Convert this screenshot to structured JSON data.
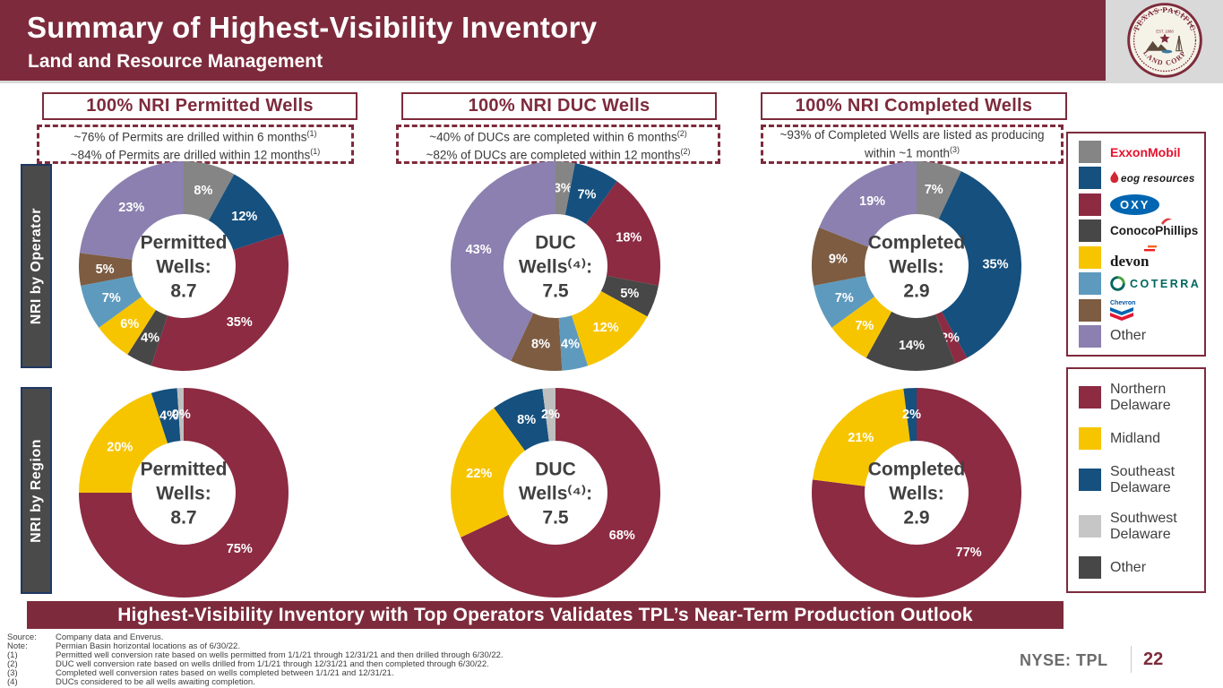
{
  "header": {
    "title": "Summary of Highest-Visibility Inventory",
    "subtitle": "Land and Resource Management",
    "logo": {
      "top": "TEXAS PACIFIC",
      "bottom": "LAND CORP",
      "est": "EST. 1888"
    }
  },
  "columns": [
    {
      "header": "100%  NRI Permitted Wells",
      "notes": [
        {
          "text": "~76% of Permits are drilled within 6 months",
          "sup": "(1)"
        },
        {
          "text": "~84% of Permits are drilled within 12 months",
          "sup": "(1)"
        }
      ]
    },
    {
      "header": "100% NRI DUC Wells",
      "notes": [
        {
          "text": "~40% of DUCs are completed within 6 months",
          "sup": "(2)"
        },
        {
          "text": "~82% of DUCs are completed within 12 months",
          "sup": "(2)"
        }
      ]
    },
    {
      "header": "100%  NRI Completed Wells",
      "notes": [
        {
          "text": "~93% of Completed Wells are listed as producing within ~1 month",
          "sup": "(3)"
        }
      ]
    }
  ],
  "row_labels": [
    "NRI by Operator",
    "NRI by Region"
  ],
  "chart_data": [
    {
      "type": "donut",
      "group": "NRI by Operator",
      "well_type": "Permitted Wells",
      "center": [
        "Permitted",
        "Wells:",
        "8.7"
      ],
      "labels": [
        "ExxonMobil",
        "EOG Resources",
        "OXY",
        "ConocoPhillips",
        "Devon",
        "Coterra",
        "Chevron",
        "Other"
      ],
      "values": [
        8,
        12,
        35,
        4,
        6,
        7,
        5,
        23
      ],
      "colors": [
        "#858585",
        "#15507E",
        "#8C2B42",
        "#474747",
        "#F7C500",
        "#5E9ABD",
        "#7D5C41",
        "#8B80AF"
      ]
    },
    {
      "type": "donut",
      "group": "NRI by Operator",
      "well_type": "DUC Wells",
      "center": [
        "DUC",
        "Wells⁽⁴⁾:",
        "7.5"
      ],
      "labels": [
        "ExxonMobil",
        "EOG Resources",
        "OXY",
        "ConocoPhillips",
        "Devon",
        "Coterra",
        "Chevron",
        "Other"
      ],
      "values": [
        3,
        7,
        18,
        5,
        12,
        4,
        8,
        43
      ],
      "colors": [
        "#858585",
        "#15507E",
        "#8C2B42",
        "#474747",
        "#F7C500",
        "#5E9ABD",
        "#7D5C41",
        "#8B80AF"
      ]
    },
    {
      "type": "donut",
      "group": "NRI by Operator",
      "well_type": "Completed Wells",
      "center": [
        "Completed",
        "Wells:",
        "2.9"
      ],
      "labels": [
        "ExxonMobil",
        "EOG Resources",
        "OXY",
        "ConocoPhillips",
        "Devon",
        "Coterra",
        "Chevron",
        "Other"
      ],
      "values": [
        7,
        35,
        2,
        14,
        7,
        7,
        9,
        19
      ],
      "colors": [
        "#858585",
        "#15507E",
        "#8C2B42",
        "#474747",
        "#F7C500",
        "#5E9ABD",
        "#7D5C41",
        "#8B80AF"
      ]
    },
    {
      "type": "donut",
      "group": "NRI by Region",
      "well_type": "Permitted Wells",
      "center": [
        "Permitted",
        "Wells:",
        "8.7"
      ],
      "labels": [
        "Northern Delaware",
        "Midland",
        "Southeast Delaware",
        "Southwest Delaware"
      ],
      "values": [
        75,
        20,
        4,
        0
      ],
      "draw_values": [
        75,
        20,
        4,
        1
      ],
      "colors": [
        "#8C2B42",
        "#F7C500",
        "#15507E",
        "#BFBFBF"
      ]
    },
    {
      "type": "donut",
      "group": "NRI by Region",
      "well_type": "DUC Wells",
      "center": [
        "DUC",
        "Wells⁽⁴⁾:",
        "7.5"
      ],
      "labels": [
        "Northern Delaware",
        "Midland",
        "Southeast Delaware",
        "Southwest Delaware"
      ],
      "values": [
        68,
        22,
        8,
        2
      ],
      "colors": [
        "#8C2B42",
        "#F7C500",
        "#15507E",
        "#BFBFBF"
      ]
    },
    {
      "type": "donut",
      "group": "NRI by Region",
      "well_type": "Completed Wells",
      "center": [
        "Completed",
        "Wells:",
        "2.9"
      ],
      "labels": [
        "Northern Delaware",
        "Midland",
        "Southeast Delaware"
      ],
      "values": [
        77,
        21,
        2
      ],
      "colors": [
        "#8C2B42",
        "#F7C500",
        "#15507E"
      ]
    }
  ],
  "legends": {
    "operator": {
      "items": [
        {
          "name": "ExxonMobil",
          "color": "#858585"
        },
        {
          "name": "eog resources",
          "color": "#15507E"
        },
        {
          "name": "OXY",
          "color": "#8C2B42"
        },
        {
          "name": "ConocoPhillips",
          "color": "#474747"
        },
        {
          "name": "devon",
          "color": "#F7C500"
        },
        {
          "name": "COTERRA",
          "color": "#5E9ABD"
        },
        {
          "name": "Chevron",
          "color": "#7D5C41"
        },
        {
          "name": "Other",
          "color": "#8B80AF"
        }
      ]
    },
    "region": {
      "items": [
        {
          "name": "Northern Delaware",
          "color": "#8C2B42"
        },
        {
          "name": "Midland",
          "color": "#F7C500"
        },
        {
          "name": "Southeast Delaware",
          "color": "#15507E"
        },
        {
          "name": "Southwest Delaware",
          "color": "#C6C6C6"
        },
        {
          "name": "Other",
          "color": "#474747"
        }
      ]
    }
  },
  "banner": "Highest-Visibility Inventory with Top Operators Validates TPL’s Near-Term Production Outlook",
  "footnotes": [
    {
      "label": "Source:",
      "text": "Company data and Enverus."
    },
    {
      "label": "Note:",
      "text": "Permian Basin horizontal locations as of 6/30/22."
    },
    {
      "label": "(1)",
      "text": "Permitted well conversion rate based on wells permitted from 1/1/21 through 12/31/21 and then drilled through 6/30/22."
    },
    {
      "label": "(2)",
      "text": "DUC well conversion rate based on wells drilled from 1/1/21 through 12/31/21 and then completed through 6/30/22."
    },
    {
      "label": "(3)",
      "text": "Completed well conversion rates based on wells completed between 1/1/21 and 12/31/21."
    },
    {
      "label": "(4)",
      "text": "DUCs considered to be all wells awaiting completion."
    }
  ],
  "footer": {
    "ticker": "NYSE: TPL",
    "page": "22"
  },
  "colors": {
    "brand_maroon": "#7D2B3C",
    "row_label_bg": "#4A4A4A",
    "row_label_border": "#1F3864"
  }
}
